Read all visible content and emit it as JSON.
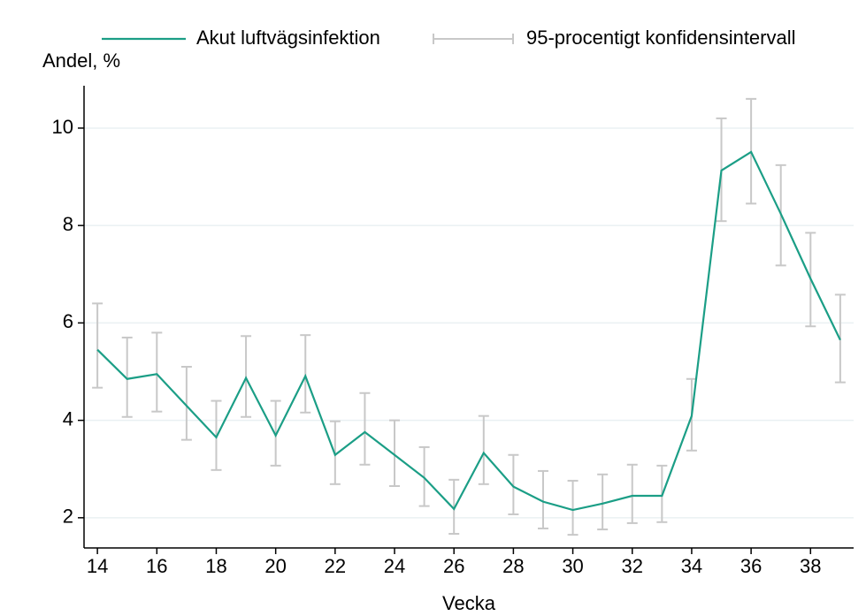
{
  "chart_data": {
    "type": "line",
    "ylabel": "Andel, %",
    "xlabel": "Vecka",
    "x": [
      14,
      15,
      16,
      17,
      18,
      19,
      20,
      21,
      22,
      23,
      24,
      25,
      26,
      27,
      28,
      29,
      30,
      31,
      32,
      33,
      34,
      35,
      36,
      37,
      38,
      39
    ],
    "series": [
      {
        "name": "Akut luftvägsinfektion",
        "color": "#1b9e86",
        "values": [
          5.45,
          4.85,
          4.95,
          4.3,
          3.65,
          4.87,
          3.69,
          4.91,
          3.29,
          3.76,
          3.29,
          2.82,
          2.18,
          3.33,
          2.64,
          2.33,
          2.16,
          2.29,
          2.45,
          2.45,
          4.09,
          9.13,
          9.51,
          8.24,
          6.91,
          5.65
        ],
        "ci_name": "95-procentigt konfidensintervall",
        "ci_color": "#c8c8c8",
        "lower": [
          4.67,
          4.07,
          4.18,
          3.6,
          2.98,
          4.07,
          3.07,
          4.16,
          2.69,
          3.09,
          2.65,
          2.24,
          1.67,
          2.69,
          2.07,
          1.78,
          1.65,
          1.76,
          1.89,
          1.91,
          3.38,
          8.09,
          8.45,
          7.18,
          5.93,
          4.78
        ],
        "upper": [
          6.4,
          5.7,
          5.8,
          5.1,
          4.4,
          5.73,
          4.4,
          5.75,
          3.98,
          4.56,
          4.0,
          3.45,
          2.78,
          4.09,
          3.29,
          2.96,
          2.76,
          2.89,
          3.09,
          3.07,
          4.85,
          10.2,
          10.6,
          9.24,
          7.85,
          6.58
        ]
      }
    ],
    "xlim": [
      13.55,
      39.45
    ],
    "xticks": [
      14,
      16,
      18,
      20,
      22,
      24,
      26,
      28,
      30,
      32,
      34,
      36,
      38
    ],
    "ylim": [
      1.38,
      10.87
    ],
    "yticks": [
      2,
      4,
      6,
      8,
      10
    ],
    "grid": true
  }
}
